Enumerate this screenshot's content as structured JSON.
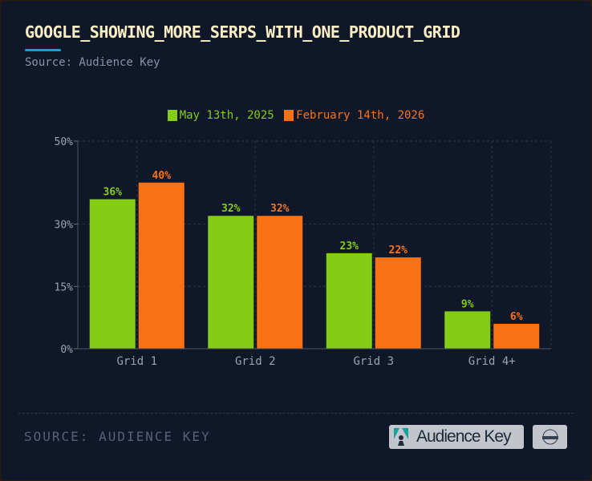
{
  "title": "GOOGLE_SHOWING_MORE_SERPS_WITH_ONE_PRODUCT_GRID",
  "subtitle": "Source: Audience Key",
  "footer": {
    "source": "SOURCE: AUDIENCE KEY",
    "logo_text": "Audience Key"
  },
  "chart_data": {
    "type": "bar",
    "categories": [
      "Grid 1",
      "Grid 2",
      "Grid 3",
      "Grid 4+"
    ],
    "series": [
      {
        "name": "May 13th, 2025",
        "color": "#84cc16",
        "values": [
          36,
          32,
          23,
          9
        ],
        "labels": [
          "36%",
          "32%",
          "23%",
          "9%"
        ]
      },
      {
        "name": "February 14th, 2026",
        "color": "#f97316",
        "values": [
          40,
          32,
          22,
          6
        ],
        "labels": [
          "40%",
          "32%",
          "22%",
          "6%"
        ]
      }
    ],
    "yticks": [
      0,
      15,
      30,
      50
    ],
    "ytick_labels": [
      "0%",
      "15%",
      "30%",
      "50%"
    ],
    "ylim": [
      0,
      50
    ],
    "grid": true,
    "legend": "top-center",
    "xlabel": "",
    "ylabel": ""
  }
}
